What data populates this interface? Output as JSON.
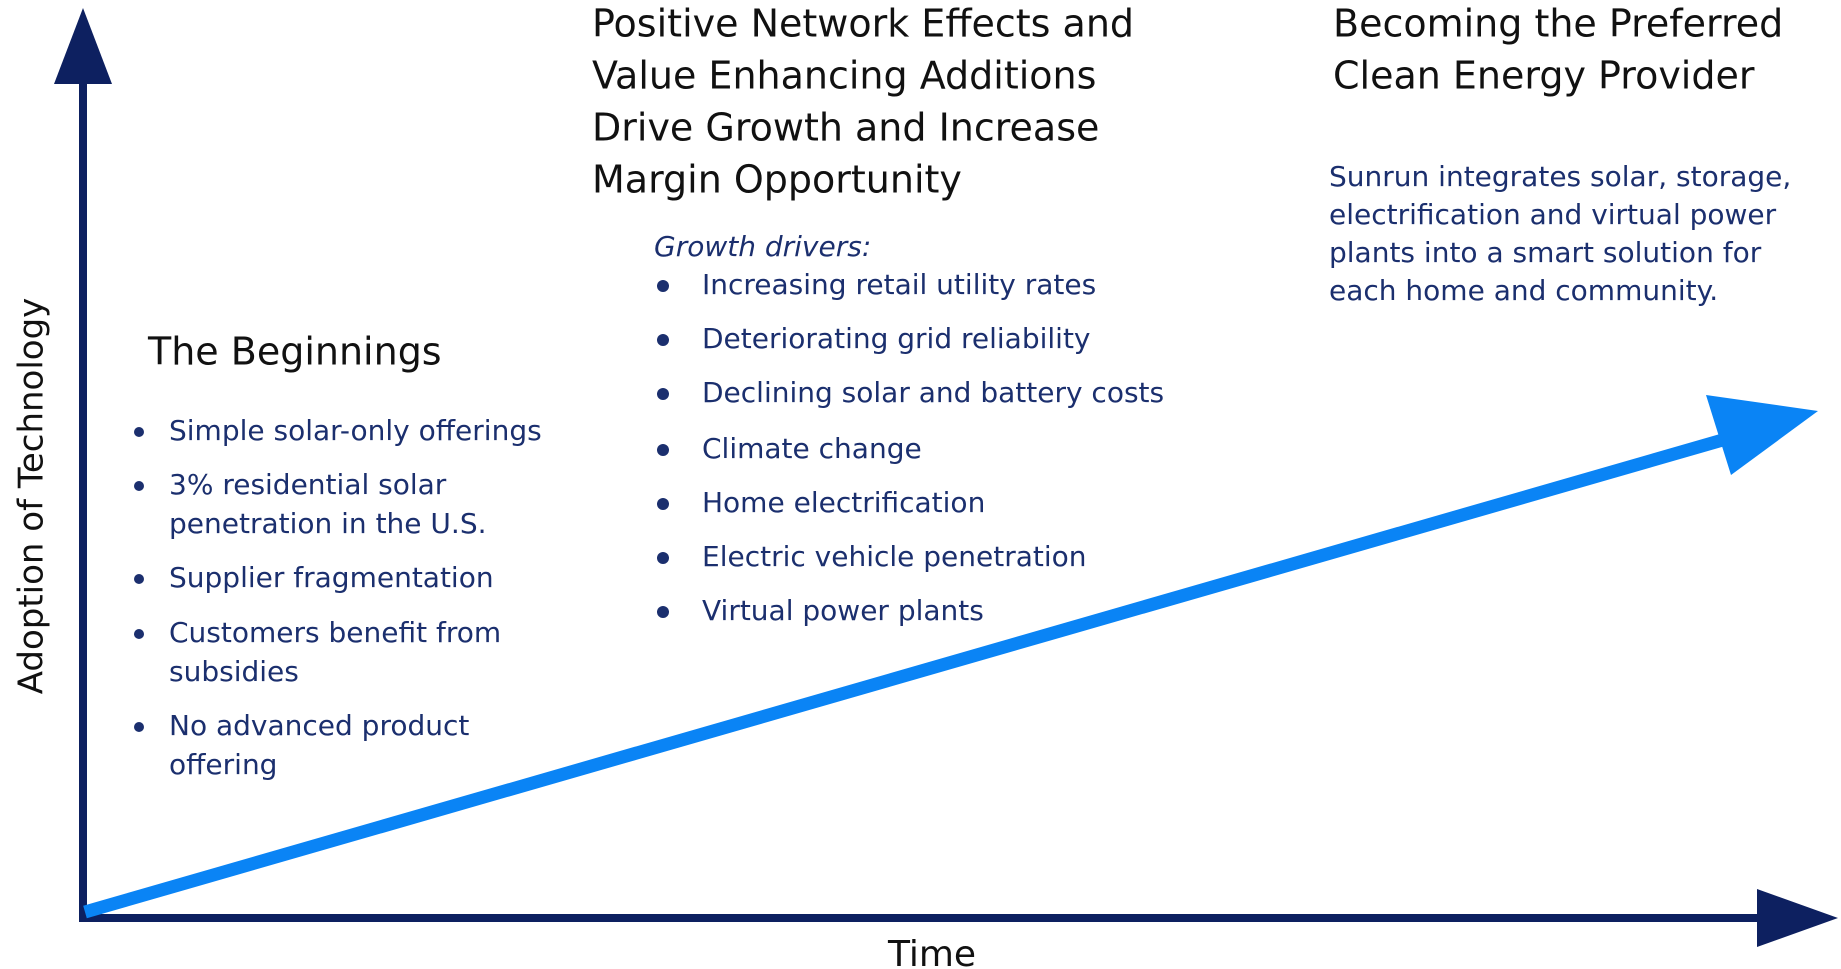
{
  "axes": {
    "y_label": "Adoption of Technology",
    "x_label": "Time"
  },
  "sections": [
    {
      "title": [
        "The Beginnings"
      ],
      "items": [
        [
          "Simple solar-only offerings"
        ],
        [
          "3% residential solar",
          "penetration in the U.S."
        ],
        [
          "Supplier fragmentation"
        ],
        [
          "Customers benefit from",
          "subsidies"
        ],
        [
          "No advanced product",
          "offering"
        ]
      ]
    },
    {
      "title": [
        "Positive Network Effects and",
        "Value Enhancing Additions",
        "Drive Growth and Increase",
        "Margin Opportunity"
      ],
      "intro": "Growth drivers:",
      "items": [
        [
          "Increasing retail utility rates"
        ],
        [
          "Deteriorating grid reliability"
        ],
        [
          "Declining solar and battery costs"
        ],
        [
          "Climate change"
        ],
        [
          "Home electrification"
        ],
        [
          "Electric vehicle penetration"
        ],
        [
          "Virtual power plants"
        ]
      ]
    },
    {
      "title": [
        "Becoming the Preferred",
        "Clean Energy Provider"
      ],
      "text": [
        "Sunrun integrates solar, storage,",
        "electrification and virtual power",
        "plants into a smart solution for",
        "each home and community."
      ]
    }
  ]
}
